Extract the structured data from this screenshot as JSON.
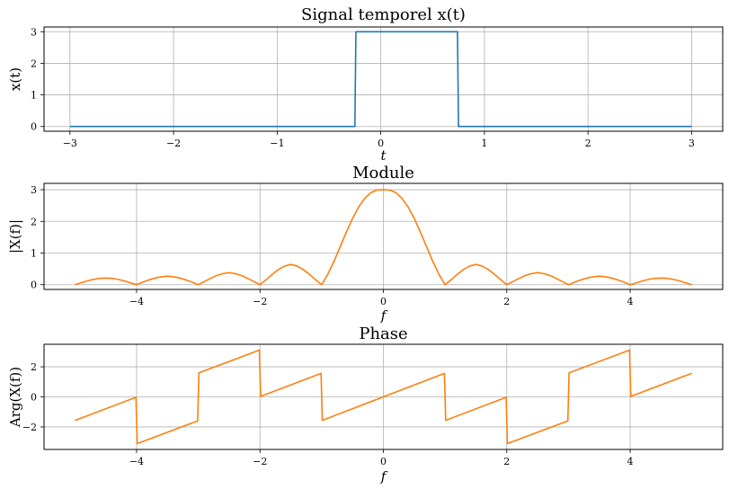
{
  "chart_data": [
    {
      "type": "line",
      "title": "Signal temporel x(t)",
      "xlabel": "t",
      "ylabel": "x(t)",
      "xlim": [
        -3.25,
        3.3
      ],
      "ylim": [
        -0.15,
        3.15
      ],
      "xticks": [
        -3,
        -2,
        -1,
        0,
        1,
        2,
        3
      ],
      "xtick_labels": [
        "−3",
        "−2",
        "−1",
        "0",
        "1",
        "2",
        "3"
      ],
      "yticks": [
        0,
        1,
        2,
        3
      ],
      "ytick_labels": [
        "0",
        "1",
        "2",
        "3"
      ],
      "grid": true,
      "series": [
        {
          "color": "#1f77b4",
          "x": [
            -3,
            -0.25,
            -0.24,
            0.74,
            0.75,
            3
          ],
          "y": [
            0,
            0,
            3,
            3,
            0,
            0
          ]
        }
      ]
    },
    {
      "type": "line",
      "title": "Module",
      "xlabel": "f",
      "ylabel": "|X(f)|",
      "xlim": [
        -5.5,
        5.5
      ],
      "ylim": [
        -0.15,
        3.2
      ],
      "xticks": [
        -4,
        -2,
        0,
        2,
        4
      ],
      "xtick_labels": [
        "−4",
        "−2",
        "0",
        "2",
        "4"
      ],
      "yticks": [
        0,
        1,
        2,
        3
      ],
      "ytick_labels": [
        "0",
        "1",
        "2",
        "3"
      ],
      "grid": true,
      "series": [
        {
          "color": "#ff7f0e",
          "x": [
            -5,
            -4.9,
            -4.8,
            -4.7,
            -4.6,
            -4.5,
            -4.4,
            -4.3,
            -4.2,
            -4.1,
            -4,
            -3.9,
            -3.8,
            -3.7,
            -3.6,
            -3.5,
            -3.4,
            -3.3,
            -3.2,
            -3.1,
            -3,
            -2.9,
            -2.8,
            -2.7,
            -2.6,
            -2.5,
            -2.4,
            -2.3,
            -2.2,
            -2.1,
            -2,
            -1.9,
            -1.8,
            -1.7,
            -1.6,
            -1.5,
            -1.4,
            -1.3,
            -1.2,
            -1.1,
            -1,
            -0.9,
            -0.8,
            -0.7,
            -0.6,
            -0.5,
            -0.4,
            -0.3,
            -0.2,
            -0.1,
            0,
            0.1,
            0.2,
            0.3,
            0.4,
            0.5,
            0.6,
            0.7,
            0.8,
            0.9,
            1,
            1.1,
            1.2,
            1.3,
            1.4,
            1.5,
            1.6,
            1.7,
            1.8,
            1.9,
            2,
            2.1,
            2.2,
            2.3,
            2.4,
            2.5,
            2.6,
            2.7,
            2.8,
            2.9,
            3,
            3.1,
            3.2,
            3.3,
            3.4,
            3.5,
            3.6,
            3.7,
            3.8,
            3.9,
            4,
            4.1,
            4.2,
            4.3,
            4.4,
            4.5,
            4.6,
            4.7,
            4.8,
            4.9,
            5
          ],
          "y": [
            0,
            0.06,
            0.12,
            0.17,
            0.2,
            0.21,
            0.2,
            0.17,
            0.12,
            0.06,
            0,
            0.08,
            0.15,
            0.21,
            0.25,
            0.27,
            0.25,
            0.21,
            0.15,
            0.08,
            0,
            0.1,
            0.2,
            0.29,
            0.35,
            0.38,
            0.35,
            0.29,
            0.2,
            0.1,
            0,
            0.16,
            0.33,
            0.48,
            0.59,
            0.64,
            0.59,
            0.48,
            0.33,
            0.16,
            0,
            0.33,
            0.74,
            1.2,
            1.66,
            2.09,
            2.46,
            2.73,
            2.91,
            2.99,
            3.0,
            2.99,
            2.91,
            2.73,
            2.46,
            2.09,
            1.66,
            1.2,
            0.74,
            0.33,
            0,
            0.16,
            0.33,
            0.48,
            0.59,
            0.64,
            0.59,
            0.48,
            0.33,
            0.16,
            0,
            0.1,
            0.2,
            0.29,
            0.35,
            0.38,
            0.35,
            0.29,
            0.2,
            0.1,
            0,
            0.08,
            0.15,
            0.21,
            0.25,
            0.27,
            0.25,
            0.21,
            0.15,
            0.08,
            0,
            0.06,
            0.12,
            0.17,
            0.2,
            0.21,
            0.2,
            0.17,
            0.12,
            0.06,
            0
          ]
        }
      ]
    },
    {
      "type": "line",
      "title": "Phase",
      "xlabel": "f",
      "ylabel": "Arg(X(f))",
      "xlim": [
        -5.5,
        5.5
      ],
      "ylim": [
        -3.5,
        3.5
      ],
      "xticks": [
        -4,
        -2,
        0,
        2,
        4
      ],
      "xtick_labels": [
        "−4",
        "−2",
        "0",
        "2",
        "4"
      ],
      "yticks": [
        -2,
        0,
        2
      ],
      "ytick_labels": [
        "−2",
        "0",
        "2"
      ],
      "grid": true,
      "series": [
        {
          "color": "#ff7f0e",
          "x": [
            -5,
            -4.01,
            -3.99,
            -3.01,
            -2.99,
            -2.01,
            -1.99,
            -1.01,
            -0.99,
            0.99,
            1.01,
            1.99,
            2.01,
            2.99,
            3.01,
            3.99,
            4.01,
            5
          ],
          "y": [
            -1.57,
            -0.03,
            -3.11,
            -1.6,
            1.6,
            3.11,
            0.03,
            1.56,
            -1.56,
            1.56,
            -1.56,
            -0.03,
            -3.11,
            -1.6,
            1.6,
            3.11,
            0.03,
            1.57
          ]
        }
      ]
    }
  ]
}
